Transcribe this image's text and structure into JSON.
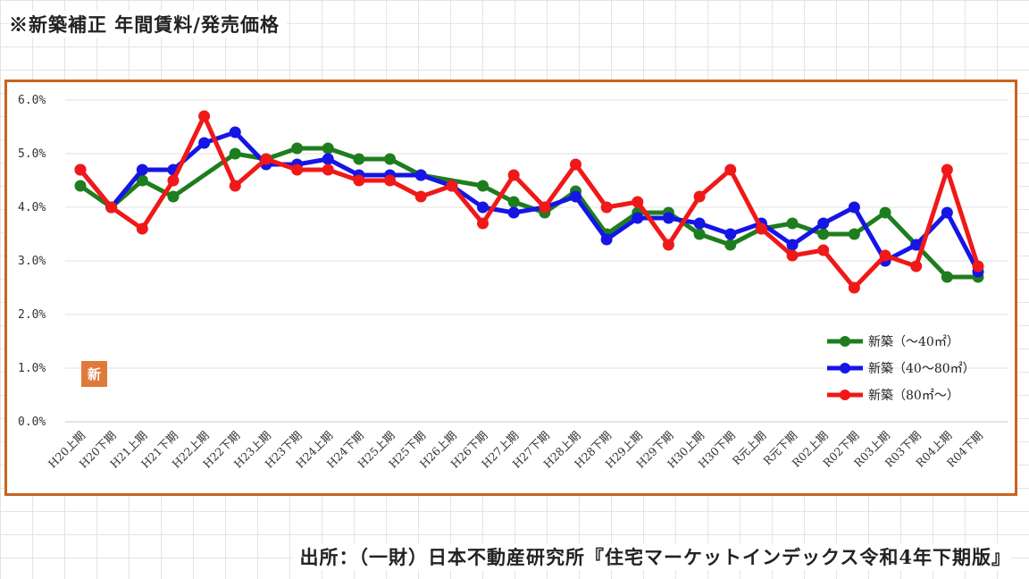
{
  "header": {
    "title": "※新築補正 年間賃料/発売価格"
  },
  "footer": {
    "source": "出所：（一財）日本不動産研究所『住宅マーケットインデックス令和4年下期版』"
  },
  "badge": {
    "label": "新",
    "color": "#e07a3a"
  },
  "chart_data": {
    "type": "line",
    "title": "",
    "xlabel": "",
    "ylabel": "",
    "ylim": [
      0,
      6
    ],
    "y_ticks": [
      "0.0%",
      "1.0%",
      "2.0%",
      "3.0%",
      "4.0%",
      "5.0%",
      "6.0%"
    ],
    "grid": "horizontal",
    "legend_position": "bottom-right",
    "categories": [
      "H20上期",
      "H20下期",
      "H21上期",
      "H21下期",
      "H22上期",
      "H22下期",
      "H23上期",
      "H23下期",
      "H24上期",
      "H24下期",
      "H25上期",
      "H25下期",
      "H26上期",
      "H26下期",
      "H27上期",
      "H27下期",
      "H28上期",
      "H28下期",
      "H29上期",
      "H29下期",
      "H30上期",
      "H30下期",
      "R元上期",
      "R元下期",
      "R02上期",
      "R02下期",
      "R03上期",
      "R03下期",
      "R04上期",
      "R04下期"
    ],
    "series": [
      {
        "name": "新築（〜40㎡）",
        "color": "#1e7d1e",
        "values": [
          4.4,
          4.0,
          4.5,
          4.2,
          null,
          5.0,
          4.9,
          5.1,
          5.1,
          4.9,
          4.9,
          4.6,
          null,
          4.4,
          4.1,
          3.9,
          4.3,
          3.5,
          3.9,
          3.9,
          3.5,
          3.3,
          3.6,
          3.7,
          3.5,
          3.5,
          3.9,
          3.3,
          2.7,
          2.7
        ]
      },
      {
        "name": "新築（40〜80㎡）",
        "color": "#1515e6",
        "values": [
          4.7,
          4.0,
          4.7,
          4.7,
          5.2,
          5.4,
          4.8,
          4.8,
          4.9,
          4.6,
          4.6,
          4.6,
          4.4,
          4.0,
          3.9,
          4.0,
          4.2,
          3.4,
          3.8,
          3.8,
          3.7,
          3.5,
          3.7,
          3.3,
          3.7,
          4.0,
          3.0,
          3.3,
          3.9,
          2.8
        ]
      },
      {
        "name": "新築（80㎡〜）",
        "color": "#f01818",
        "values": [
          4.7,
          4.0,
          3.6,
          4.5,
          5.7,
          4.4,
          4.9,
          4.7,
          4.7,
          4.5,
          4.5,
          4.2,
          4.4,
          3.7,
          4.6,
          4.0,
          4.8,
          4.0,
          4.1,
          3.3,
          4.2,
          4.7,
          3.6,
          3.1,
          3.2,
          2.5,
          3.1,
          2.9,
          4.7,
          2.9
        ]
      }
    ]
  }
}
